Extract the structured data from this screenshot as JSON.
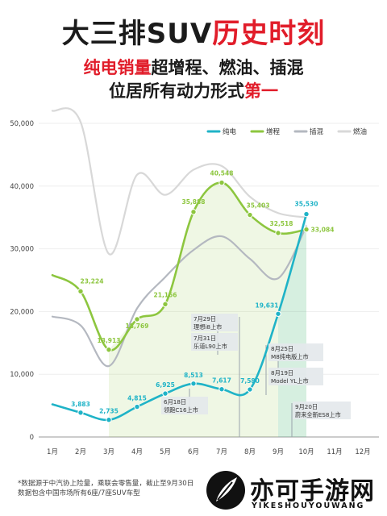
{
  "headline": {
    "line1_a": "大三排SUV",
    "line1_b": "历史时刻",
    "line2_a": "纯电销量",
    "line2_b": "超增程、燃油、插混",
    "line3_a": "位居所有动力形式",
    "line3_b": "第一"
  },
  "chart_data": {
    "type": "line",
    "categories": [
      "1月",
      "2月",
      "3月",
      "4月",
      "5月",
      "6月",
      "7月",
      "8月",
      "9月",
      "10月",
      "11月",
      "12月"
    ],
    "ylim": [
      0,
      50000
    ],
    "yticks": [
      "0",
      "10,000",
      "20,000",
      "30,000",
      "40,000",
      "50,000"
    ],
    "legend_position": "top-right",
    "series": [
      {
        "name": "纯电",
        "color": "#1fb3c7",
        "values": [
          5200,
          3883,
          2735,
          4815,
          6925,
          8513,
          7617,
          7580,
          19631,
          35530,
          null,
          null
        ],
        "labels": [
          "",
          "3,883",
          "2,735",
          "4,815",
          "6,925",
          "8,513",
          "7,617",
          "7,580",
          "19,631",
          "35,530",
          "",
          ""
        ]
      },
      {
        "name": "增程",
        "color": "#8dc63f",
        "values": [
          25800,
          23224,
          13913,
          18769,
          21166,
          35888,
          40548,
          35403,
          32518,
          33084,
          null,
          null
        ],
        "labels": [
          "",
          "23,224",
          "13,913",
          "18,769",
          "21,166",
          "35,888",
          "40,548",
          "35,403",
          "32,518",
          "33,084",
          "",
          ""
        ]
      },
      {
        "name": "插混",
        "color": "#b4b8c0",
        "values": [
          19200,
          17800,
          11300,
          20500,
          25500,
          29800,
          32000,
          28400,
          25300,
          33600,
          null,
          null
        ]
      },
      {
        "name": "燃油",
        "color": "#d8d8d8",
        "values": [
          52000,
          50200,
          29200,
          41800,
          38600,
          42600,
          43200,
          38300,
          35700,
          35000,
          null,
          null
        ]
      }
    ],
    "annotations": [
      {
        "month": "6月",
        "lines": [
          "6月18日",
          "领跑C16上市"
        ]
      },
      {
        "month": "7月",
        "lines": [
          "7月29日",
          "理想i8上市"
        ]
      },
      {
        "month": "7月",
        "lines": [
          "7月31日",
          "乐道L90上市"
        ]
      },
      {
        "month": "9月",
        "lines": [
          "8月25日",
          "M8纯电版上市"
        ]
      },
      {
        "month": "9月",
        "lines": [
          "8月19日",
          "Model YL上市"
        ]
      },
      {
        "month": "10月",
        "lines": [
          "9月20日",
          "蔚来全新ES8上市"
        ]
      }
    ]
  },
  "notes": {
    "line1": "*数据源于中汽协上险量，乘联会零售量，截止至9月30日",
    "line2": "数据包含中国市场所有6座/7座SUV车型"
  },
  "brand": {
    "name": "亦可手游网",
    "sub": "YIKESHOUYOUWANG"
  }
}
